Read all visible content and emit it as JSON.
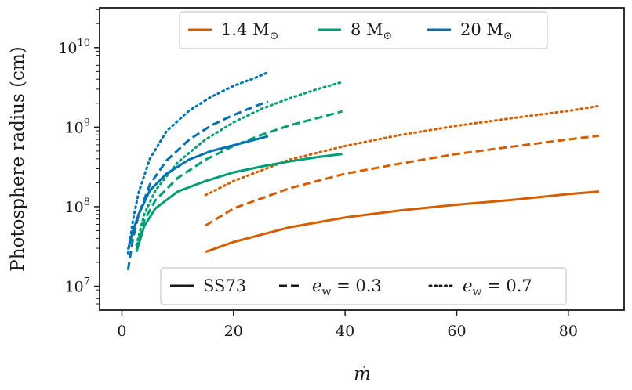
{
  "chart_data": {
    "type": "line",
    "title": "",
    "xlabel": "ṁ",
    "ylabel": "Photosphere radius (cm)",
    "xlim": [
      -4,
      90
    ],
    "ylim_log10": [
      6.7,
      10.5
    ],
    "yscale": "log",
    "x_ticks": [
      0,
      20,
      40,
      60,
      80
    ],
    "y_ticks": [
      {
        "base": "10",
        "exp": "7",
        "value": 7
      },
      {
        "base": "10",
        "exp": "8",
        "value": 8
      },
      {
        "base": "10",
        "exp": "9",
        "value": 9
      },
      {
        "base": "10",
        "exp": "10",
        "value": 10
      }
    ],
    "mass_legend": [
      {
        "label": "1.4 M",
        "sub": "⊙",
        "color": "#d55e00"
      },
      {
        "label": "8 M",
        "sub": "⊙",
        "color": "#009e73"
      },
      {
        "label": "20 M",
        "sub": "⊙",
        "color": "#0072b2"
      }
    ],
    "style_legend": [
      {
        "label": "SS73",
        "dash": "solid"
      },
      {
        "label": "e",
        "sub": "w",
        "suffix": " = 0.3",
        "dash": "dashed"
      },
      {
        "label": "e",
        "sub": "w",
        "suffix": " = 0.7",
        "dash": "dotted"
      }
    ],
    "series": [
      {
        "name": "1.4 Msun SS73",
        "color": "#d55e00",
        "dash": "solid",
        "x": [
          15,
          20,
          30,
          40,
          50,
          60,
          70,
          80,
          85.5
        ],
        "y": [
          27000000.0,
          36000000.0,
          55000000.0,
          73000000.0,
          90000000.0,
          106000000.0,
          122000000.0,
          144000000.0,
          155000000.0
        ]
      },
      {
        "name": "1.4 Msun e_w=0.3",
        "color": "#d55e00",
        "dash": "dashed",
        "x": [
          15,
          20,
          30,
          40,
          50,
          60,
          70,
          80,
          85.5
        ],
        "y": [
          58000000.0,
          95000000.0,
          170000000.0,
          260000000.0,
          350000000.0,
          460000000.0,
          570000000.0,
          700000000.0,
          780000000.0
        ]
      },
      {
        "name": "1.4 Msun e_w=0.7",
        "color": "#d55e00",
        "dash": "dotted",
        "x": [
          15,
          20,
          30,
          40,
          50,
          60,
          70,
          80,
          85.5
        ],
        "y": [
          140000000.0,
          210000000.0,
          390000000.0,
          580000000.0,
          800000000.0,
          1040000000.0,
          1300000000.0,
          1600000000.0,
          1850000000.0
        ]
      },
      {
        "name": "8 Msun SS73",
        "color": "#009e73",
        "dash": "solid",
        "x": [
          2.6,
          4,
          6,
          10,
          15,
          20,
          25,
          30,
          35,
          39.5
        ],
        "y": [
          27000000.0,
          57000000.0,
          95000000.0,
          155000000.0,
          210000000.0,
          270000000.0,
          320000000.0,
          370000000.0,
          420000000.0,
          460000000.0
        ]
      },
      {
        "name": "8 Msun e_w=0.3",
        "color": "#009e73",
        "dash": "dashed",
        "x": [
          2.6,
          4,
          6,
          10,
          15,
          20,
          25,
          30,
          35,
          39.5
        ],
        "y": [
          29000000.0,
          67000000.0,
          120000000.0,
          230000000.0,
          390000000.0,
          580000000.0,
          800000000.0,
          1050000000.0,
          1300000000.0,
          1580000000.0
        ]
      },
      {
        "name": "8 Msun e_w=0.7",
        "color": "#009e73",
        "dash": "dotted",
        "x": [
          2.6,
          4,
          6,
          10,
          15,
          20,
          25,
          30,
          35,
          39.5
        ],
        "y": [
          33000000.0,
          80000000.0,
          160000000.0,
          360000000.0,
          700000000.0,
          1150000000.0,
          1700000000.0,
          2300000000.0,
          3000000000.0,
          3700000000.0
        ]
      },
      {
        "name": "20 Msun SS73",
        "color": "#0072b2",
        "dash": "solid",
        "x": [
          1.1,
          2,
          3,
          5,
          8,
          12,
          16,
          20,
          24,
          26.2
        ],
        "y": [
          29000000.0,
          50000000.0,
          80000000.0,
          160000000.0,
          260000000.0,
          390000000.0,
          500000000.0,
          590000000.0,
          700000000.0,
          770000000.0
        ]
      },
      {
        "name": "20 Msun e_w=0.3",
        "color": "#0072b2",
        "dash": "dashed",
        "x": [
          1.1,
          2,
          3,
          5,
          8,
          12,
          16,
          20,
          24,
          26.2
        ],
        "y": [
          16000000.0,
          40000000.0,
          79000000.0,
          190000000.0,
          380000000.0,
          690000000.0,
          1050000000.0,
          1420000000.0,
          1850000000.0,
          2100000000.0
        ]
      },
      {
        "name": "20 Msun e_w=0.7",
        "color": "#0072b2",
        "dash": "dotted",
        "x": [
          1.1,
          2,
          3,
          5,
          8,
          12,
          16,
          20,
          24,
          26.2
        ],
        "y": [
          26000000.0,
          69000000.0,
          150000000.0,
          400000000.0,
          890000000.0,
          1600000000.0,
          2400000000.0,
          3300000000.0,
          4200000000.0,
          4900000000.0
        ]
      }
    ]
  }
}
